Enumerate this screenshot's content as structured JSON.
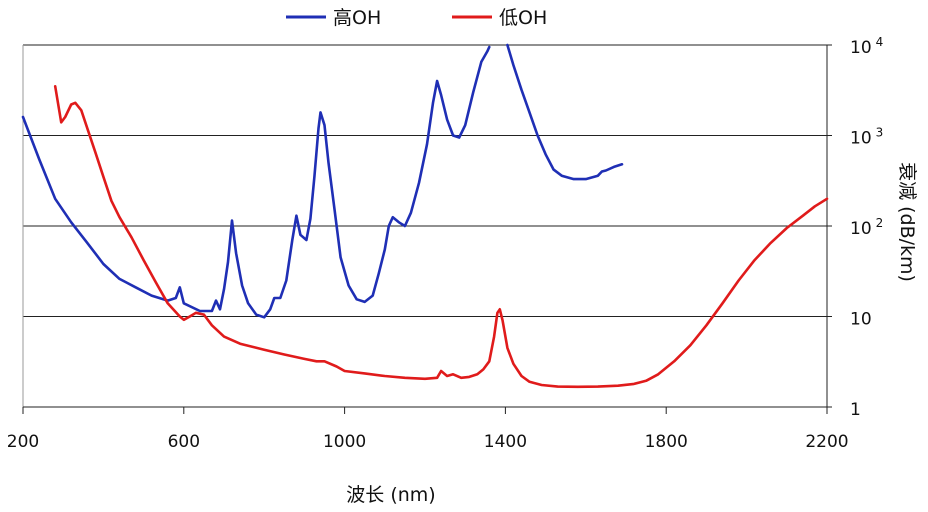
{
  "chart_data": {
    "type": "line",
    "xlabel": "波长 (nm)",
    "ylabel": "衰减 (dB/km)",
    "xlim": [
      200,
      2200
    ],
    "x_ticks": [
      "200",
      "600",
      "1000",
      "1400",
      "1800",
      "2200"
    ],
    "y_scale": "log",
    "ylim": [
      1,
      10000
    ],
    "y_ticks": [
      {
        "value": 10000,
        "base": "10",
        "exp": "4"
      },
      {
        "value": 1000,
        "base": "10",
        "exp": "3"
      },
      {
        "value": 100,
        "base": "10",
        "exp": "2"
      },
      {
        "value": 10,
        "base": "10",
        "exp": ""
      },
      {
        "value": 1,
        "base": "1",
        "exp": ""
      }
    ],
    "grid": "horizontal",
    "legend_position": "top-center",
    "series": [
      {
        "name": "高OH",
        "color": "#1f2fb5",
        "points": [
          [
            200,
            1600
          ],
          [
            240,
            550
          ],
          [
            280,
            200
          ],
          [
            320,
            110
          ],
          [
            360,
            65
          ],
          [
            400,
            38
          ],
          [
            440,
            26
          ],
          [
            480,
            21
          ],
          [
            520,
            17
          ],
          [
            560,
            15
          ],
          [
            580,
            16
          ],
          [
            590,
            21
          ],
          [
            600,
            14
          ],
          [
            640,
            11.5
          ],
          [
            670,
            11.5
          ],
          [
            680,
            15
          ],
          [
            690,
            12
          ],
          [
            700,
            20
          ],
          [
            710,
            40
          ],
          [
            720,
            115
          ],
          [
            730,
            50
          ],
          [
            745,
            22
          ],
          [
            760,
            14
          ],
          [
            780,
            10.5
          ],
          [
            800,
            9.8
          ],
          [
            815,
            12
          ],
          [
            825,
            16
          ],
          [
            840,
            16
          ],
          [
            855,
            25
          ],
          [
            870,
            70
          ],
          [
            880,
            130
          ],
          [
            890,
            80
          ],
          [
            905,
            70
          ],
          [
            915,
            120
          ],
          [
            925,
            350
          ],
          [
            935,
            1200
          ],
          [
            940,
            1800
          ],
          [
            950,
            1300
          ],
          [
            960,
            500
          ],
          [
            975,
            150
          ],
          [
            990,
            45
          ],
          [
            1010,
            22
          ],
          [
            1030,
            15.5
          ],
          [
            1050,
            14.5
          ],
          [
            1070,
            17
          ],
          [
            1085,
            30
          ],
          [
            1100,
            55
          ],
          [
            1110,
            100
          ],
          [
            1120,
            125
          ],
          [
            1135,
            110
          ],
          [
            1150,
            100
          ],
          [
            1165,
            140
          ],
          [
            1185,
            300
          ],
          [
            1205,
            800
          ],
          [
            1220,
            2300
          ],
          [
            1230,
            4000
          ],
          [
            1240,
            2800
          ],
          [
            1255,
            1500
          ],
          [
            1270,
            1000
          ],
          [
            1285,
            950
          ],
          [
            1300,
            1300
          ],
          [
            1320,
            3000
          ],
          [
            1340,
            6500
          ],
          [
            1355,
            8500
          ],
          [
            1360,
            9500
          ]
        ],
        "segment2": [
          [
            1405,
            10000
          ],
          [
            1420,
            6000
          ],
          [
            1440,
            3200
          ],
          [
            1460,
            1800
          ],
          [
            1480,
            1000
          ],
          [
            1500,
            620
          ],
          [
            1520,
            420
          ],
          [
            1540,
            360
          ],
          [
            1570,
            330
          ],
          [
            1600,
            330
          ],
          [
            1630,
            360
          ],
          [
            1640,
            400
          ],
          [
            1650,
            410
          ],
          [
            1670,
            450
          ],
          [
            1690,
            480
          ]
        ]
      },
      {
        "name": "低OH",
        "color": "#e01b1b",
        "points": [
          [
            280,
            3500
          ],
          [
            295,
            1400
          ],
          [
            305,
            1600
          ],
          [
            320,
            2200
          ],
          [
            330,
            2300
          ],
          [
            345,
            1900
          ],
          [
            360,
            1200
          ],
          [
            380,
            650
          ],
          [
            400,
            350
          ],
          [
            420,
            190
          ],
          [
            440,
            125
          ],
          [
            470,
            75
          ],
          [
            500,
            42
          ],
          [
            530,
            24
          ],
          [
            560,
            14
          ],
          [
            590,
            10
          ],
          [
            600,
            9.2
          ],
          [
            615,
            10
          ],
          [
            630,
            11
          ],
          [
            650,
            10.5
          ],
          [
            670,
            8
          ],
          [
            700,
            6
          ],
          [
            740,
            5
          ],
          [
            800,
            4.3
          ],
          [
            850,
            3.8
          ],
          [
            900,
            3.4
          ],
          [
            930,
            3.2
          ],
          [
            950,
            3.2
          ],
          [
            980,
            2.8
          ],
          [
            1000,
            2.5
          ],
          [
            1050,
            2.35
          ],
          [
            1100,
            2.2
          ],
          [
            1150,
            2.1
          ],
          [
            1200,
            2.05
          ],
          [
            1230,
            2.1
          ],
          [
            1240,
            2.5
          ],
          [
            1255,
            2.2
          ],
          [
            1270,
            2.3
          ],
          [
            1290,
            2.1
          ],
          [
            1310,
            2.15
          ],
          [
            1330,
            2.3
          ],
          [
            1345,
            2.6
          ],
          [
            1360,
            3.2
          ],
          [
            1372,
            6
          ],
          [
            1380,
            11
          ],
          [
            1386,
            12
          ],
          [
            1393,
            9
          ],
          [
            1405,
            4.5
          ],
          [
            1420,
            3
          ],
          [
            1440,
            2.2
          ],
          [
            1460,
            1.9
          ],
          [
            1490,
            1.75
          ],
          [
            1530,
            1.68
          ],
          [
            1580,
            1.67
          ],
          [
            1630,
            1.68
          ],
          [
            1680,
            1.72
          ],
          [
            1720,
            1.8
          ],
          [
            1750,
            1.95
          ],
          [
            1780,
            2.3
          ],
          [
            1820,
            3.2
          ],
          [
            1860,
            4.8
          ],
          [
            1900,
            8
          ],
          [
            1940,
            14
          ],
          [
            1980,
            25
          ],
          [
            2020,
            42
          ],
          [
            2060,
            65
          ],
          [
            2100,
            95
          ],
          [
            2140,
            130
          ],
          [
            2170,
            165
          ],
          [
            2200,
            200
          ]
        ]
      }
    ]
  }
}
